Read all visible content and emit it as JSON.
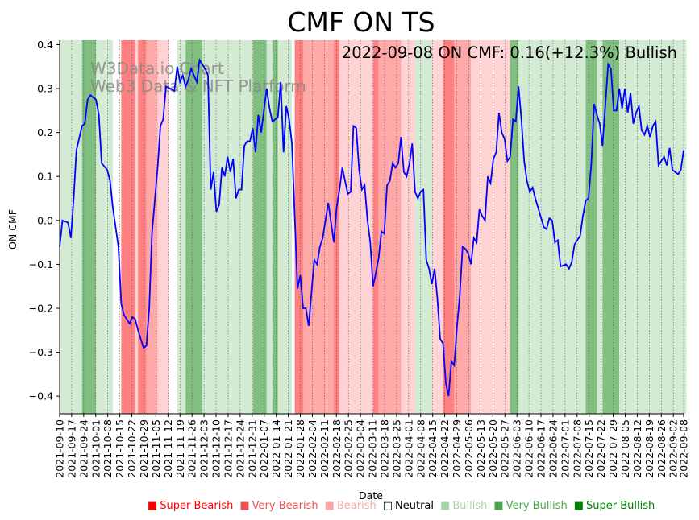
{
  "chart_data": {
    "type": "line",
    "title": "CMF ON TS",
    "annotation": "2022-09-08 ON CMF: 0.16(+12.3%) Bullish",
    "watermark_lines": [
      "W3Data.io Chart",
      "Web3 Data & NFT Platform"
    ],
    "xlabel": "Date",
    "ylabel": "ON CMF",
    "ylim": [
      -0.44,
      0.41
    ],
    "yticks": [
      0.4,
      0.3,
      0.2,
      0.1,
      0.0,
      -0.1,
      -0.2,
      -0.3,
      -0.4
    ],
    "ytick_labels": [
      "0.4",
      "0.3",
      "0.2",
      "0.1",
      "0.0",
      "−0.1",
      "−0.2",
      "−0.3",
      "−0.4"
    ],
    "xticks": [
      "2021-09-10",
      "2021-09-17",
      "2021-09-24",
      "2021-10-01",
      "2021-10-08",
      "2021-10-15",
      "2021-10-22",
      "2021-10-29",
      "2021-11-05",
      "2021-11-12",
      "2021-11-19",
      "2021-11-26",
      "2021-12-03",
      "2021-12-10",
      "2021-12-17",
      "2021-12-24",
      "2021-12-31",
      "2022-01-07",
      "2022-01-14",
      "2022-01-21",
      "2022-01-28",
      "2022-02-04",
      "2022-02-11",
      "2022-02-18",
      "2022-02-25",
      "2022-03-04",
      "2022-03-11",
      "2022-03-18",
      "2022-03-25",
      "2022-04-01",
      "2022-04-08",
      "2022-04-15",
      "2022-04-22",
      "2022-04-29",
      "2022-05-06",
      "2022-05-13",
      "2022-05-20",
      "2022-05-27",
      "2022-06-03",
      "2022-06-10",
      "2022-06-17",
      "2022-06-24",
      "2022-07-01",
      "2022-07-08",
      "2022-07-15",
      "2022-07-22",
      "2022-07-29",
      "2022-08-05",
      "2022-08-12",
      "2022-08-19",
      "2022-08-26",
      "2022-09-02",
      "2022-09-08"
    ],
    "series": [
      {
        "name": "ON CMF",
        "color": "#0000ff",
        "points": [
          [
            0,
            -0.06
          ],
          [
            1,
            0.0
          ],
          [
            3,
            -0.005
          ],
          [
            4,
            -0.04
          ],
          [
            5,
            0.05
          ],
          [
            6,
            0.16
          ],
          [
            8,
            0.215
          ],
          [
            9,
            0.22
          ],
          [
            10,
            0.275
          ],
          [
            11,
            0.285
          ],
          [
            13,
            0.275
          ],
          [
            14,
            0.24
          ],
          [
            15,
            0.13
          ],
          [
            17,
            0.115
          ],
          [
            18,
            0.09
          ],
          [
            19,
            0.03
          ],
          [
            21,
            -0.06
          ],
          [
            22,
            -0.19
          ],
          [
            23,
            -0.215
          ],
          [
            25,
            -0.235
          ],
          [
            26,
            -0.22
          ],
          [
            27,
            -0.225
          ],
          [
            28,
            -0.25
          ],
          [
            30,
            -0.29
          ],
          [
            31,
            -0.285
          ],
          [
            32,
            -0.2
          ],
          [
            33,
            -0.03
          ],
          [
            35,
            0.12
          ],
          [
            36,
            0.215
          ],
          [
            37,
            0.23
          ],
          [
            38,
            0.305
          ],
          [
            41,
            0.295
          ],
          [
            42,
            0.35
          ],
          [
            43,
            0.315
          ],
          [
            44,
            0.33
          ],
          [
            45,
            0.305
          ],
          [
            46,
            0.32
          ],
          [
            47,
            0.345
          ],
          [
            49,
            0.315
          ],
          [
            50,
            0.365
          ],
          [
            52,
            0.345
          ],
          [
            53,
            0.33
          ],
          [
            54,
            0.07
          ],
          [
            55,
            0.11
          ],
          [
            56,
            0.02
          ],
          [
            57,
            0.035
          ],
          [
            58,
            0.12
          ],
          [
            59,
            0.1
          ],
          [
            60,
            0.145
          ],
          [
            61,
            0.11
          ],
          [
            62,
            0.14
          ],
          [
            63,
            0.05
          ],
          [
            64,
            0.07
          ],
          [
            65,
            0.07
          ],
          [
            66,
            0.17
          ],
          [
            67,
            0.18
          ],
          [
            68,
            0.18
          ],
          [
            69,
            0.21
          ],
          [
            70,
            0.155
          ],
          [
            71,
            0.24
          ],
          [
            72,
            0.2
          ],
          [
            73,
            0.25
          ],
          [
            74,
            0.3
          ],
          [
            75,
            0.255
          ],
          [
            76,
            0.225
          ],
          [
            78,
            0.235
          ],
          [
            79,
            0.315
          ],
          [
            80,
            0.155
          ],
          [
            81,
            0.26
          ],
          [
            82,
            0.23
          ],
          [
            83,
            0.175
          ],
          [
            85,
            -0.155
          ],
          [
            86,
            -0.125
          ],
          [
            87,
            -0.2
          ],
          [
            88,
            -0.2
          ],
          [
            89,
            -0.24
          ],
          [
            91,
            -0.09
          ],
          [
            92,
            -0.1
          ],
          [
            93,
            -0.06
          ],
          [
            94,
            -0.04
          ],
          [
            95,
            0.0
          ],
          [
            96,
            0.04
          ],
          [
            98,
            -0.05
          ],
          [
            99,
            0.03
          ],
          [
            100,
            0.07
          ],
          [
            101,
            0.12
          ],
          [
            102,
            0.09
          ],
          [
            103,
            0.06
          ],
          [
            104,
            0.065
          ],
          [
            105,
            0.215
          ],
          [
            106,
            0.21
          ],
          [
            107,
            0.115
          ],
          [
            108,
            0.07
          ],
          [
            109,
            0.08
          ],
          [
            110,
            0.0
          ],
          [
            111,
            -0.05
          ],
          [
            112,
            -0.15
          ],
          [
            113,
            -0.12
          ],
          [
            114,
            -0.085
          ],
          [
            115,
            -0.025
          ],
          [
            116,
            -0.03
          ],
          [
            117,
            0.08
          ],
          [
            118,
            0.09
          ],
          [
            119,
            0.13
          ],
          [
            120,
            0.12
          ],
          [
            121,
            0.13
          ],
          [
            122,
            0.19
          ],
          [
            123,
            0.11
          ],
          [
            124,
            0.1
          ],
          [
            125,
            0.13
          ],
          [
            126,
            0.175
          ],
          [
            127,
            0.065
          ],
          [
            128,
            0.05
          ],
          [
            129,
            0.065
          ],
          [
            130,
            0.07
          ],
          [
            131,
            -0.09
          ],
          [
            132,
            -0.11
          ],
          [
            133,
            -0.145
          ],
          [
            134,
            -0.11
          ],
          [
            135,
            -0.18
          ],
          [
            136,
            -0.27
          ],
          [
            137,
            -0.28
          ],
          [
            138,
            -0.37
          ],
          [
            139,
            -0.4
          ],
          [
            140,
            -0.32
          ],
          [
            141,
            -0.33
          ],
          [
            142,
            -0.24
          ],
          [
            143,
            -0.17
          ],
          [
            144,
            -0.06
          ],
          [
            145,
            -0.065
          ],
          [
            146,
            -0.075
          ],
          [
            147,
            -0.1
          ],
          [
            148,
            -0.04
          ],
          [
            149,
            -0.05
          ],
          [
            150,
            0.025
          ],
          [
            151,
            0.01
          ],
          [
            152,
            0.0
          ],
          [
            153,
            0.1
          ],
          [
            154,
            0.085
          ],
          [
            155,
            0.14
          ],
          [
            156,
            0.155
          ],
          [
            157,
            0.245
          ],
          [
            158,
            0.2
          ],
          [
            159,
            0.185
          ],
          [
            160,
            0.135
          ],
          [
            161,
            0.145
          ],
          [
            162,
            0.23
          ],
          [
            163,
            0.225
          ],
          [
            164,
            0.305
          ],
          [
            165,
            0.23
          ],
          [
            166,
            0.135
          ],
          [
            167,
            0.09
          ],
          [
            168,
            0.065
          ],
          [
            169,
            0.075
          ],
          [
            170,
            0.05
          ],
          [
            173,
            -0.015
          ],
          [
            174,
            -0.02
          ],
          [
            175,
            0.005
          ],
          [
            176,
            0.0
          ],
          [
            177,
            -0.05
          ],
          [
            178,
            -0.045
          ],
          [
            179,
            -0.105
          ],
          [
            181,
            -0.1
          ],
          [
            182,
            -0.11
          ],
          [
            183,
            -0.095
          ],
          [
            184,
            -0.055
          ],
          [
            186,
            -0.035
          ],
          [
            187,
            0.01
          ],
          [
            188,
            0.045
          ],
          [
            189,
            0.05
          ],
          [
            190,
            0.13
          ],
          [
            191,
            0.265
          ],
          [
            192,
            0.24
          ],
          [
            193,
            0.22
          ],
          [
            194,
            0.17
          ],
          [
            195,
            0.26
          ],
          [
            196,
            0.355
          ],
          [
            197,
            0.345
          ],
          [
            198,
            0.25
          ],
          [
            199,
            0.25
          ],
          [
            200,
            0.3
          ],
          [
            201,
            0.255
          ],
          [
            202,
            0.3
          ],
          [
            203,
            0.245
          ],
          [
            204,
            0.29
          ],
          [
            205,
            0.22
          ],
          [
            206,
            0.245
          ],
          [
            207,
            0.26
          ],
          [
            208,
            0.205
          ],
          [
            209,
            0.195
          ],
          [
            210,
            0.215
          ],
          [
            211,
            0.19
          ],
          [
            212,
            0.215
          ],
          [
            213,
            0.225
          ],
          [
            214,
            0.125
          ],
          [
            215,
            0.135
          ],
          [
            216,
            0.145
          ],
          [
            217,
            0.125
          ],
          [
            218,
            0.165
          ],
          [
            219,
            0.115
          ],
          [
            220,
            0.11
          ],
          [
            221,
            0.105
          ],
          [
            222,
            0.115
          ],
          [
            223,
            0.16
          ]
        ]
      }
    ],
    "x_range_days": [
      0,
      223
    ],
    "regime_bands": [
      {
        "from": 0,
        "to": 8,
        "regime": "Bullish"
      },
      {
        "from": 8,
        "to": 13,
        "regime": "Very Bullish"
      },
      {
        "from": 13,
        "to": 19,
        "regime": "Bullish"
      },
      {
        "from": 19,
        "to": 22,
        "regime": "Neutral"
      },
      {
        "from": 22,
        "to": 27,
        "regime": "Super Bearish"
      },
      {
        "from": 27,
        "to": 28,
        "regime": "Bearish"
      },
      {
        "from": 28,
        "to": 31,
        "regime": "Super Bearish"
      },
      {
        "from": 31,
        "to": 35,
        "regime": "Very Bearish"
      },
      {
        "from": 35,
        "to": 39,
        "regime": "Bearish"
      },
      {
        "from": 39,
        "to": 42,
        "regime": "Neutral"
      },
      {
        "from": 42,
        "to": 45,
        "regime": "Bullish"
      },
      {
        "from": 45,
        "to": 51,
        "regime": "Very Bullish"
      },
      {
        "from": 51,
        "to": 52,
        "regime": "Bullish"
      },
      {
        "from": 52,
        "to": 69,
        "regime": "Bullish"
      },
      {
        "from": 69,
        "to": 74,
        "regime": "Very Bullish"
      },
      {
        "from": 74,
        "to": 76,
        "regime": "Bullish"
      },
      {
        "from": 76,
        "to": 78,
        "regime": "Very Bullish"
      },
      {
        "from": 78,
        "to": 83,
        "regime": "Bullish"
      },
      {
        "from": 83,
        "to": 84,
        "regime": "Neutral"
      },
      {
        "from": 84,
        "to": 87,
        "regime": "Super Bearish"
      },
      {
        "from": 87,
        "to": 98,
        "regime": "Very Bearish"
      },
      {
        "from": 98,
        "to": 100,
        "regime": "Super Bearish"
      },
      {
        "from": 100,
        "to": 108,
        "regime": "Bearish"
      },
      {
        "from": 108,
        "to": 112,
        "regime": "Bearish"
      },
      {
        "from": 112,
        "to": 114,
        "regime": "Super Bearish"
      },
      {
        "from": 114,
        "to": 122,
        "regime": "Very Bearish"
      },
      {
        "from": 122,
        "to": 127,
        "regime": "Bearish"
      },
      {
        "from": 127,
        "to": 133,
        "regime": "Bullish"
      },
      {
        "from": 133,
        "to": 137,
        "regime": "Bearish"
      },
      {
        "from": 137,
        "to": 141,
        "regime": "Super Bearish"
      },
      {
        "from": 141,
        "to": 147,
        "regime": "Very Bearish"
      },
      {
        "from": 147,
        "to": 161,
        "regime": "Bearish"
      },
      {
        "from": 161,
        "to": 164,
        "regime": "Very Bullish"
      },
      {
        "from": 164,
        "to": 171,
        "regime": "Bullish"
      },
      {
        "from": 171,
        "to": 188,
        "regime": "Bullish"
      },
      {
        "from": 188,
        "to": 192,
        "regime": "Very Bullish"
      },
      {
        "from": 192,
        "to": 194,
        "regime": "Bullish"
      },
      {
        "from": 194,
        "to": 200,
        "regime": "Very Bullish"
      },
      {
        "from": 200,
        "to": 208,
        "regime": "Bullish"
      },
      {
        "from": 208,
        "to": 224,
        "regime": "Bullish"
      }
    ],
    "legend": [
      {
        "label": "Super Bearish",
        "color": "#ff0000"
      },
      {
        "label": "Very Bearish",
        "color": "#f05050"
      },
      {
        "label": "Bearish",
        "color": "#f7a8a8"
      },
      {
        "label": "Neutral",
        "color": "#000000",
        "hollow": true
      },
      {
        "label": "Bullish",
        "color": "#a8d4a8"
      },
      {
        "label": "Very Bullish",
        "color": "#4ca64c"
      },
      {
        "label": "Super Bullish",
        "color": "#008000"
      }
    ],
    "legend_placement": "bottom-center",
    "grid": "vertical dotted at weekly ticks"
  }
}
